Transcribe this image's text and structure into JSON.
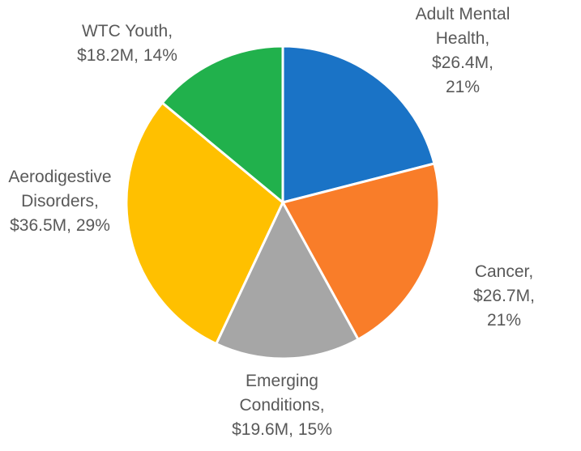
{
  "figure": {
    "background_color": "#ffffff",
    "label_text_color": "#595959",
    "slice_border_color": "#ffffff"
  },
  "chart_data": {
    "type": "pie",
    "title": "",
    "legend_position": "none",
    "start_angle_deg": 0,
    "direction": "clockwise",
    "total_pct": 100,
    "slices": [
      {
        "id": "adult-mental-health",
        "label": "Adult Mental Health",
        "amount": "$26.4M",
        "value": 26.4,
        "pct": 21,
        "color": "#1A73C6",
        "display": "Adult Mental\nHealth, $26.4M,\n21%"
      },
      {
        "id": "cancer",
        "label": "Cancer",
        "amount": "$26.7M",
        "value": 26.7,
        "pct": 21,
        "color": "#F97D29",
        "display": "Cancer, $26.7M,\n21%"
      },
      {
        "id": "emerging-conditions",
        "label": "Emerging Conditions",
        "amount": "$19.6M",
        "value": 19.6,
        "pct": 15,
        "color": "#A6A6A6",
        "display": "Emerging\nConditions,\n$19.6M, 15%"
      },
      {
        "id": "aerodigestive-disorders",
        "label": "Aerodigestive Disorders",
        "amount": "$36.5M",
        "value": 36.5,
        "pct": 29,
        "color": "#FFC000",
        "display": "Aerodigestive\nDisorders,\n$36.5M, 29%"
      },
      {
        "id": "wtc-youth",
        "label": "WTC Youth",
        "amount": "$18.2M",
        "value": 18.2,
        "pct": 14,
        "color": "#21B14C",
        "display": "WTC Youth,\n$18.2M, 14%"
      }
    ]
  }
}
